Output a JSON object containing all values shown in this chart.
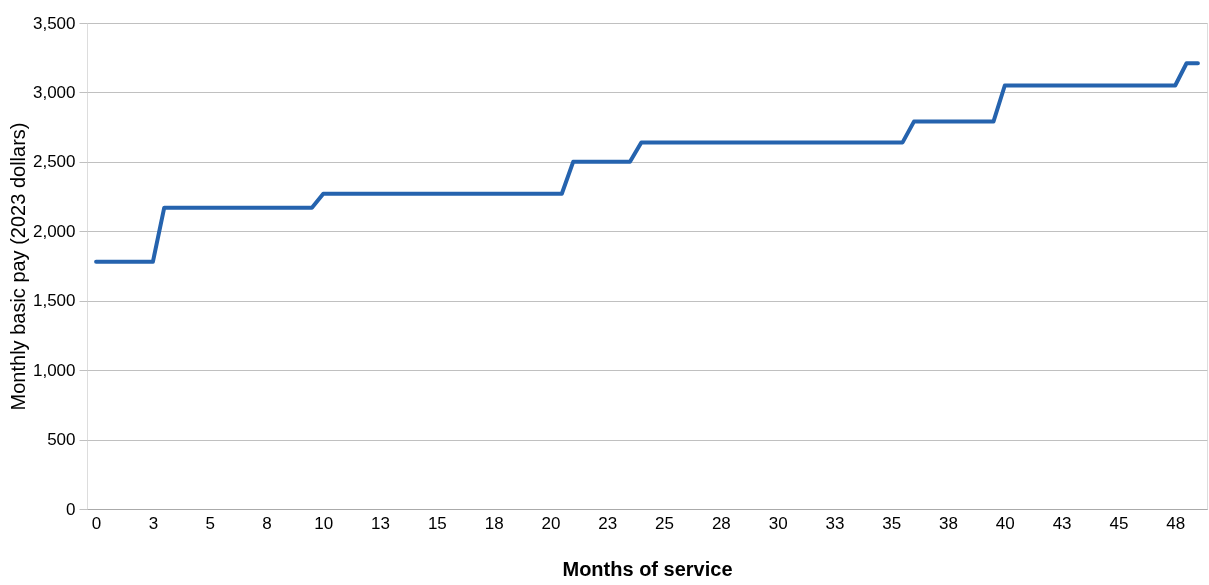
{
  "chart_data": {
    "type": "line",
    "xlabel": "Months of service",
    "ylabel": "Monthly basic pay (2023 dollars)",
    "x": [
      0,
      2.5,
      3,
      9.5,
      10,
      20.5,
      21,
      23.5,
      24,
      35.5,
      36,
      39.5,
      40,
      47.5,
      48,
      48.5
    ],
    "series": [
      {
        "color": "#2563ae",
        "values": [
          1780,
          1780,
          2170,
          2170,
          2270,
          2270,
          2500,
          2500,
          2640,
          2640,
          2790,
          2790,
          3050,
          3050,
          3210,
          3210
        ]
      }
    ],
    "xlim": [
      -0.4,
      48.9
    ],
    "xticks": [
      0,
      {
        "value": 2.5,
        "label": "3"
      },
      5,
      {
        "value": 7.5,
        "label": "8"
      },
      10,
      {
        "value": 12.5,
        "label": "13"
      },
      15,
      {
        "value": 17.5,
        "label": "18"
      },
      20,
      {
        "value": 22.5,
        "label": "23"
      },
      25,
      {
        "value": 27.5,
        "label": "28"
      },
      30,
      {
        "value": 32.5,
        "label": "33"
      },
      35,
      {
        "value": 37.5,
        "label": "38"
      },
      40,
      {
        "value": 42.5,
        "label": "43"
      },
      45,
      {
        "value": 47.5,
        "label": "48"
      }
    ],
    "ylim": [
      0,
      3500
    ],
    "yticks": [
      0,
      500,
      {
        "value": 1000,
        "label": "1,000"
      },
      {
        "value": 1500,
        "label": "1,500"
      },
      {
        "value": 2000,
        "label": "2,000"
      },
      {
        "value": 2500,
        "label": "2,500"
      },
      {
        "value": 3000,
        "label": "3,000"
      },
      {
        "value": 3500,
        "label": "3,500"
      }
    ],
    "grid": "y",
    "marker": "none",
    "line_style": "solid"
  }
}
